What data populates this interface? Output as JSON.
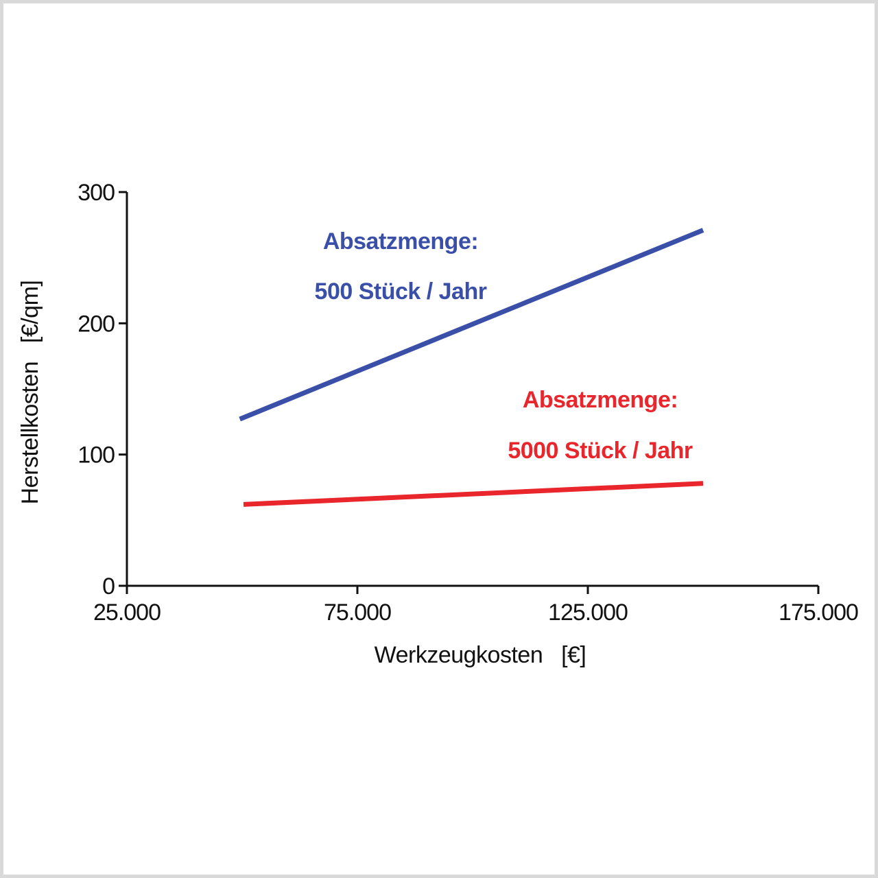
{
  "chart_data": {
    "type": "line",
    "xlabel": "Werkzeugkosten   [€]",
    "ylabel": "Herstellkosten   [€/qm]",
    "xlim": [
      25000,
      175000
    ],
    "ylim": [
      0,
      300
    ],
    "x_ticks": [
      {
        "value": 25000,
        "label": "25.000"
      },
      {
        "value": 75000,
        "label": "75.000"
      },
      {
        "value": 125000,
        "label": "125.000"
      },
      {
        "value": 175000,
        "label": "175.000"
      }
    ],
    "y_ticks": [
      {
        "value": 0,
        "label": "0"
      },
      {
        "value": 100,
        "label": "100"
      },
      {
        "value": 200,
        "label": "200"
      },
      {
        "value": 300,
        "label": "300"
      }
    ],
    "grid": false,
    "series": [
      {
        "color": "#3a4fa8",
        "x": [
          49500,
          150000
        ],
        "y": [
          127,
          271
        ],
        "annotation": [
          "Absatzmenge:",
          "500 Stück / Jahr"
        ]
      },
      {
        "color": "#e8262b",
        "x": [
          50300,
          150000
        ],
        "y": [
          62,
          78
        ],
        "annotation": [
          "Absatzmenge:",
          "5000 Stück / Jahr"
        ]
      }
    ]
  }
}
